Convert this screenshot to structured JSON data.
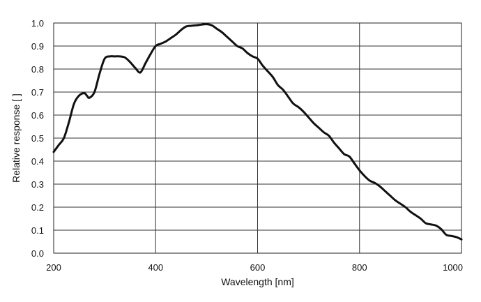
{
  "chart_data": {
    "type": "line",
    "title": "",
    "xlabel": "Wavelength [nm]",
    "ylabel": "Relative response [ ]",
    "xlim": [
      200,
      1000
    ],
    "ylim": [
      0.0,
      1.0
    ],
    "xticks": [
      200,
      400,
      600,
      800,
      1000
    ],
    "xtick_labels": [
      "200",
      "400",
      "600",
      "800",
      "1000"
    ],
    "yticks": [
      0.0,
      0.1,
      0.2,
      0.3,
      0.4,
      0.5,
      0.6,
      0.7,
      0.8,
      0.9,
      1.0
    ],
    "ytick_labels": [
      "0.0",
      "0.1",
      "0.2",
      "0.3",
      "0.4",
      "0.5",
      "0.6",
      "0.7",
      "0.8",
      "0.9",
      "1.0"
    ],
    "grid": true,
    "line_color": "#111111",
    "series": [
      {
        "x": [
          200,
          210,
          220,
          230,
          240,
          250,
          260,
          265,
          270,
          280,
          290,
          300,
          310,
          320,
          330,
          340,
          350,
          360,
          370,
          380,
          390,
          400,
          410,
          420,
          430,
          440,
          450,
          460,
          470,
          480,
          490,
          500,
          510,
          520,
          530,
          540,
          550,
          560,
          570,
          580,
          590,
          600,
          610,
          620,
          630,
          640,
          650,
          660,
          670,
          680,
          690,
          700,
          710,
          720,
          730,
          740,
          750,
          760,
          770,
          780,
          790,
          800,
          810,
          820,
          830,
          840,
          850,
          860,
          870,
          880,
          890,
          900,
          910,
          920,
          930,
          940,
          950,
          960,
          970,
          980,
          990,
          1000
        ],
        "y": [
          0.44,
          0.47,
          0.5,
          0.57,
          0.65,
          0.685,
          0.695,
          0.685,
          0.675,
          0.7,
          0.78,
          0.845,
          0.855,
          0.855,
          0.855,
          0.85,
          0.83,
          0.805,
          0.785,
          0.825,
          0.865,
          0.9,
          0.91,
          0.92,
          0.935,
          0.95,
          0.97,
          0.985,
          0.988,
          0.99,
          0.993,
          0.995,
          0.99,
          0.975,
          0.96,
          0.94,
          0.92,
          0.9,
          0.89,
          0.87,
          0.855,
          0.845,
          0.815,
          0.79,
          0.765,
          0.73,
          0.71,
          0.68,
          0.65,
          0.635,
          0.615,
          0.59,
          0.565,
          0.545,
          0.525,
          0.51,
          0.48,
          0.455,
          0.43,
          0.42,
          0.39,
          0.36,
          0.335,
          0.315,
          0.305,
          0.29,
          0.27,
          0.25,
          0.23,
          0.215,
          0.2,
          0.18,
          0.165,
          0.15,
          0.13,
          0.125,
          0.12,
          0.105,
          0.08,
          0.075,
          0.07,
          0.06
        ]
      }
    ]
  }
}
